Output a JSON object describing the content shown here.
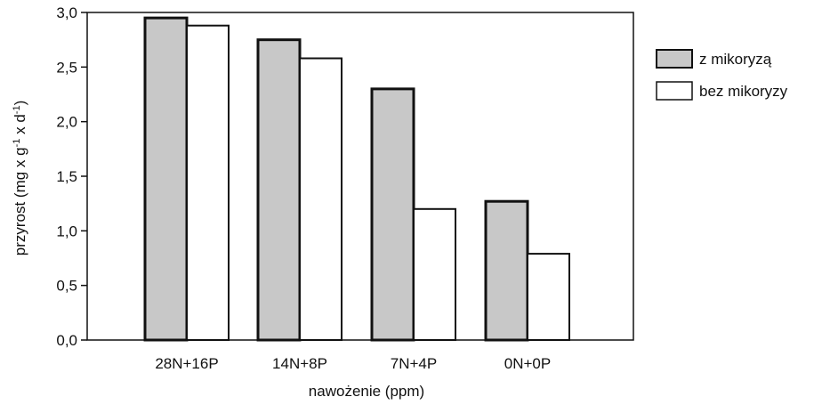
{
  "chart_data": {
    "type": "bar",
    "categories": [
      "28N+16P",
      "14N+8P",
      "7N+4P",
      "0N+0P"
    ],
    "series": [
      {
        "name": "z mikoryzą",
        "values": [
          2.95,
          2.75,
          2.3,
          1.27
        ],
        "color": "#c8c8c8"
      },
      {
        "name": "bez mikoryzy",
        "values": [
          2.88,
          2.58,
          1.2,
          0.79
        ],
        "color": "#ffffff"
      }
    ],
    "yticks": [
      "0,0",
      "0,5",
      "1,0",
      "1,5",
      "2,0",
      "2,5",
      "3,0"
    ],
    "ytick_values": [
      0,
      0.5,
      1.0,
      1.5,
      2.0,
      2.5,
      3.0
    ],
    "ylim": [
      0,
      3.0
    ],
    "xlabel": "nawożenie (ppm)",
    "ylabel": "przyrost (mg x g-1 x d-1)",
    "ylabel_parts": {
      "main": "przyrost (mg x g",
      "sup1": "-1",
      "mid": " x d",
      "sup2": "-1",
      "end": ")"
    },
    "grid": false,
    "legend_position": "right"
  }
}
